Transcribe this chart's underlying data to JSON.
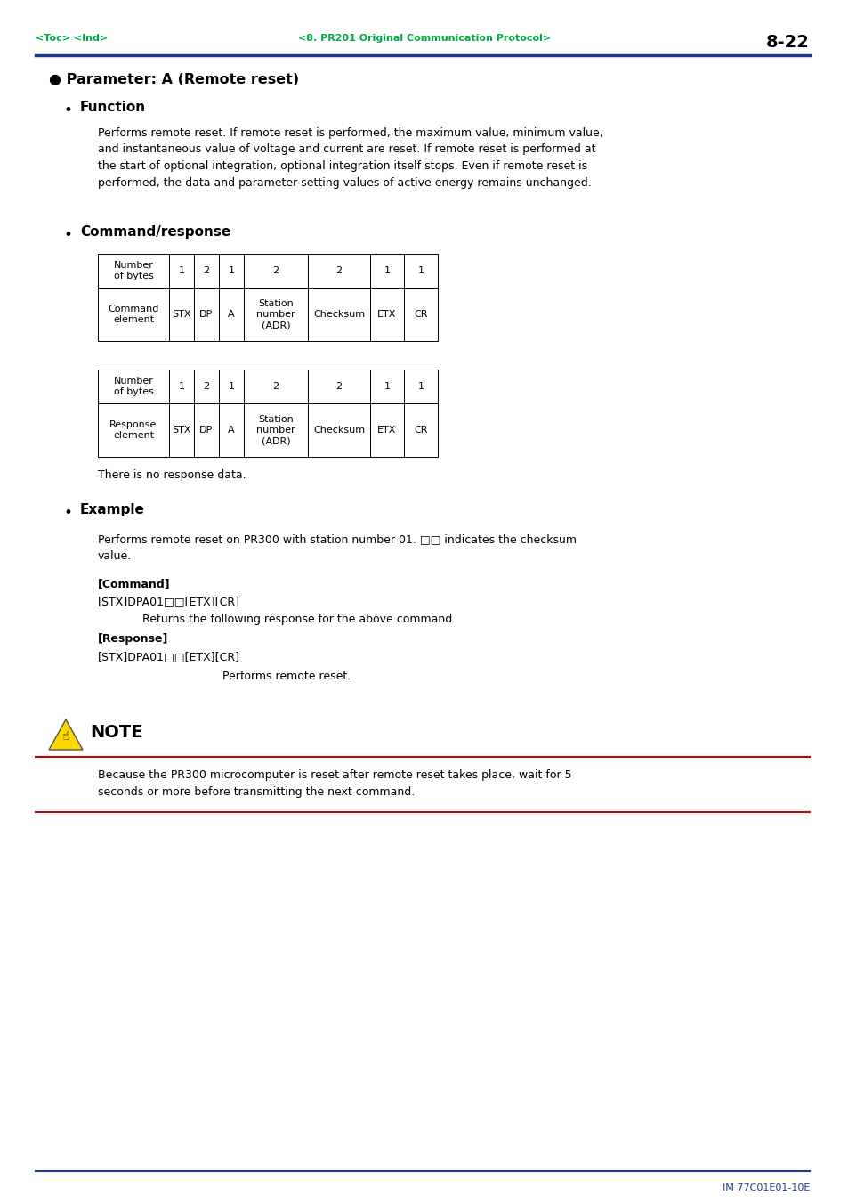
{
  "page_width": 9.54,
  "page_height": 13.51,
  "bg_color": "#ffffff",
  "header_toc": "<Toc> <Ind>",
  "header_center": "<8. PR201 Original Communication Protocol>",
  "header_right": "8-22",
  "header_color": "#00aa44",
  "header_right_color": "#000000",
  "header_line_color": "#1a3a8c",
  "title": "● Parameter: A (Remote reset)",
  "section_function": "Function",
  "function_text": "Performs remote reset. If remote reset is performed, the maximum value, minimum value,\nand instantaneous value of voltage and current are reset. If remote reset is performed at\nthe start of optional integration, optional integration itself stops. Even if remote reset is\nperformed, the data and parameter setting values of active energy remains unchanged.",
  "section_command": "Command/response",
  "cmd_table_headers": [
    "Number\nof bytes",
    "1",
    "2",
    "1",
    "2",
    "2",
    "1",
    "1"
  ],
  "cmd_table_row2": [
    "Command\nelement",
    "STX",
    "DP",
    "A",
    "Station\nnumber\n(ADR)",
    "Checksum",
    "ETX",
    "CR"
  ],
  "resp_table_headers": [
    "Number\nof bytes",
    "1",
    "2",
    "1",
    "2",
    "2",
    "1",
    "1"
  ],
  "resp_table_row2": [
    "Response\nelement",
    "STX",
    "DP",
    "A",
    "Station\nnumber\n(ADR)",
    "Checksum",
    "ETX",
    "CR"
  ],
  "no_response_text": "There is no response data.",
  "section_example": "Example",
  "example_text": "Performs remote reset on PR300 with station number 01. □□ indicates the checksum\nvalue.",
  "cmd_label": "[Command]",
  "cmd_code": "[STX]DPA01□□[ETX][CR]",
  "returns_note": "Returns the following response for the above command.",
  "resp_label": "[Response]",
  "resp_code": "[STX]DPA01□□[ETX][CR]",
  "resp_performs": "Performs remote reset.",
  "note_title": "NOTE",
  "note_text": "Because the PR300 microcomputer is reset after remote reset takes place, wait for 5\nseconds or more before transmitting the next command.",
  "footer_text": "IM 77C01E01-10E",
  "footer_line_color": "#1a3a8c",
  "note_line_color": "#cc0000",
  "table_border_color": "#000000",
  "text_color": "#000000"
}
